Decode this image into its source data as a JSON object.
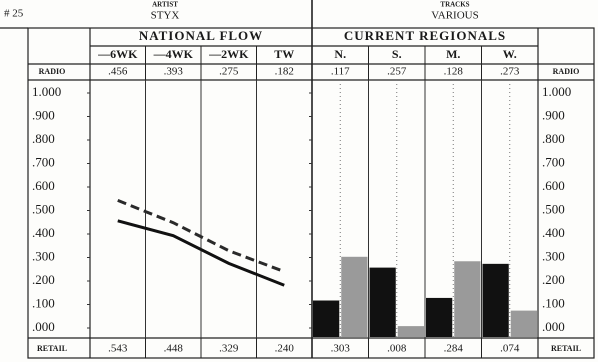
{
  "header": {
    "rank": "# 25",
    "artist_label": "ARTIST",
    "artist": "STYX",
    "tracks_label": "TRACKS",
    "tracks": "VARIOUS"
  },
  "chart_data": [
    {
      "type": "line",
      "title": "NATIONAL FLOW",
      "categories": [
        "—6WK",
        "—4WK",
        "—2WK",
        "TW"
      ],
      "series": [
        {
          "name": "RADIO",
          "color": "#111111",
          "line_style": "solid",
          "values": [
            0.456,
            0.393,
            0.275,
            0.182
          ],
          "value_labels": [
            ".456",
            ".393",
            ".275",
            ".182"
          ]
        },
        {
          "name": "RETAIL",
          "color": "#2a2a2a",
          "line_style": "dashed",
          "values": [
            0.543,
            0.448,
            0.329,
            0.24
          ],
          "value_labels": [
            ".543",
            ".448",
            ".329",
            ".240"
          ]
        }
      ],
      "ylim": [
        0,
        1
      ],
      "yticks": [
        {
          "value": 0,
          "label": ".000"
        },
        {
          "value": 0.1,
          "label": ".100"
        },
        {
          "value": 0.2,
          "label": ".200"
        },
        {
          "value": 0.3,
          "label": ".300"
        },
        {
          "value": 0.4,
          "label": ".400"
        },
        {
          "value": 0.5,
          "label": ".500"
        },
        {
          "value": 0.6,
          "label": ".600"
        },
        {
          "value": 0.7,
          "label": ".700"
        },
        {
          "value": 0.8,
          "label": ".800"
        },
        {
          "value": 0.9,
          "label": ".900"
        },
        {
          "value": 1,
          "label": "1.000"
        }
      ]
    },
    {
      "type": "bar",
      "title": "CURRENT REGIONALS",
      "categories": [
        "N.",
        "S.",
        "M.",
        "W."
      ],
      "series": [
        {
          "name": "RADIO",
          "color": "#111111",
          "values": [
            0.117,
            0.257,
            0.128,
            0.273
          ],
          "value_labels": [
            ".117",
            ".257",
            ".128",
            ".273"
          ]
        },
        {
          "name": "RETAIL",
          "color": "#9a9a9a",
          "values": [
            0.303,
            0.008,
            0.284,
            0.074
          ],
          "value_labels": [
            ".303",
            ".008",
            ".284",
            ".074"
          ]
        }
      ],
      "ylim": [
        0,
        1
      ],
      "yticks": [
        {
          "value": 0,
          "label": ".000"
        },
        {
          "value": 0.1,
          "label": ".100"
        },
        {
          "value": 0.2,
          "label": ".200"
        },
        {
          "value": 0.3,
          "label": ".300"
        },
        {
          "value": 0.4,
          "label": ".400"
        },
        {
          "value": 0.5,
          "label": ".500"
        },
        {
          "value": 0.6,
          "label": ".600"
        },
        {
          "value": 0.7,
          "label": ".700"
        },
        {
          "value": 0.8,
          "label": ".800"
        },
        {
          "value": 0.9,
          "label": ".900"
        },
        {
          "value": 1,
          "label": "1.000"
        }
      ]
    }
  ]
}
